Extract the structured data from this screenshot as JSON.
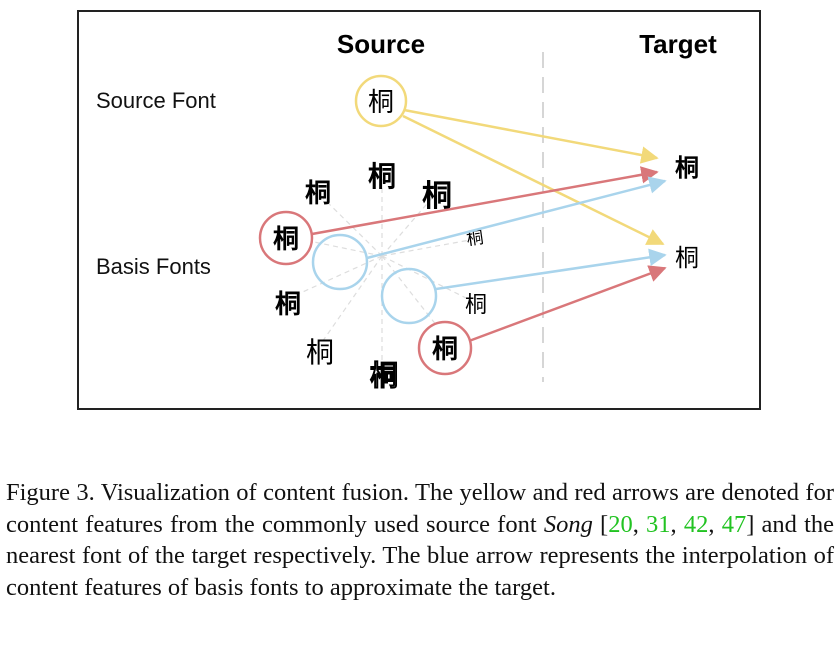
{
  "figure": {
    "header_source": "Source",
    "header_target": "Target",
    "label_source_font": "Source Font",
    "label_basis_fonts": "Basis Fonts",
    "glyph_char": "桐",
    "colors": {
      "yellow": "#f2d97a",
      "red": "#d9777a",
      "blue": "#a9d4ec",
      "dash": "#cccccc"
    }
  },
  "caption": {
    "part1": "Figure 3.  Visualization of content fusion.  The yellow and red arrows are denoted for content features from the commonly used source font ",
    "font_name": "Song",
    "part2": " [",
    "cite1": "20",
    "sep1": ", ",
    "cite2": "31",
    "sep2": ", ",
    "cite3": "42",
    "sep3": ", ",
    "cite4": "47",
    "part3": "] and the nearest font of the target respectively. The blue arrow represents the interpolation of content features of basis fonts to approximate the target."
  }
}
